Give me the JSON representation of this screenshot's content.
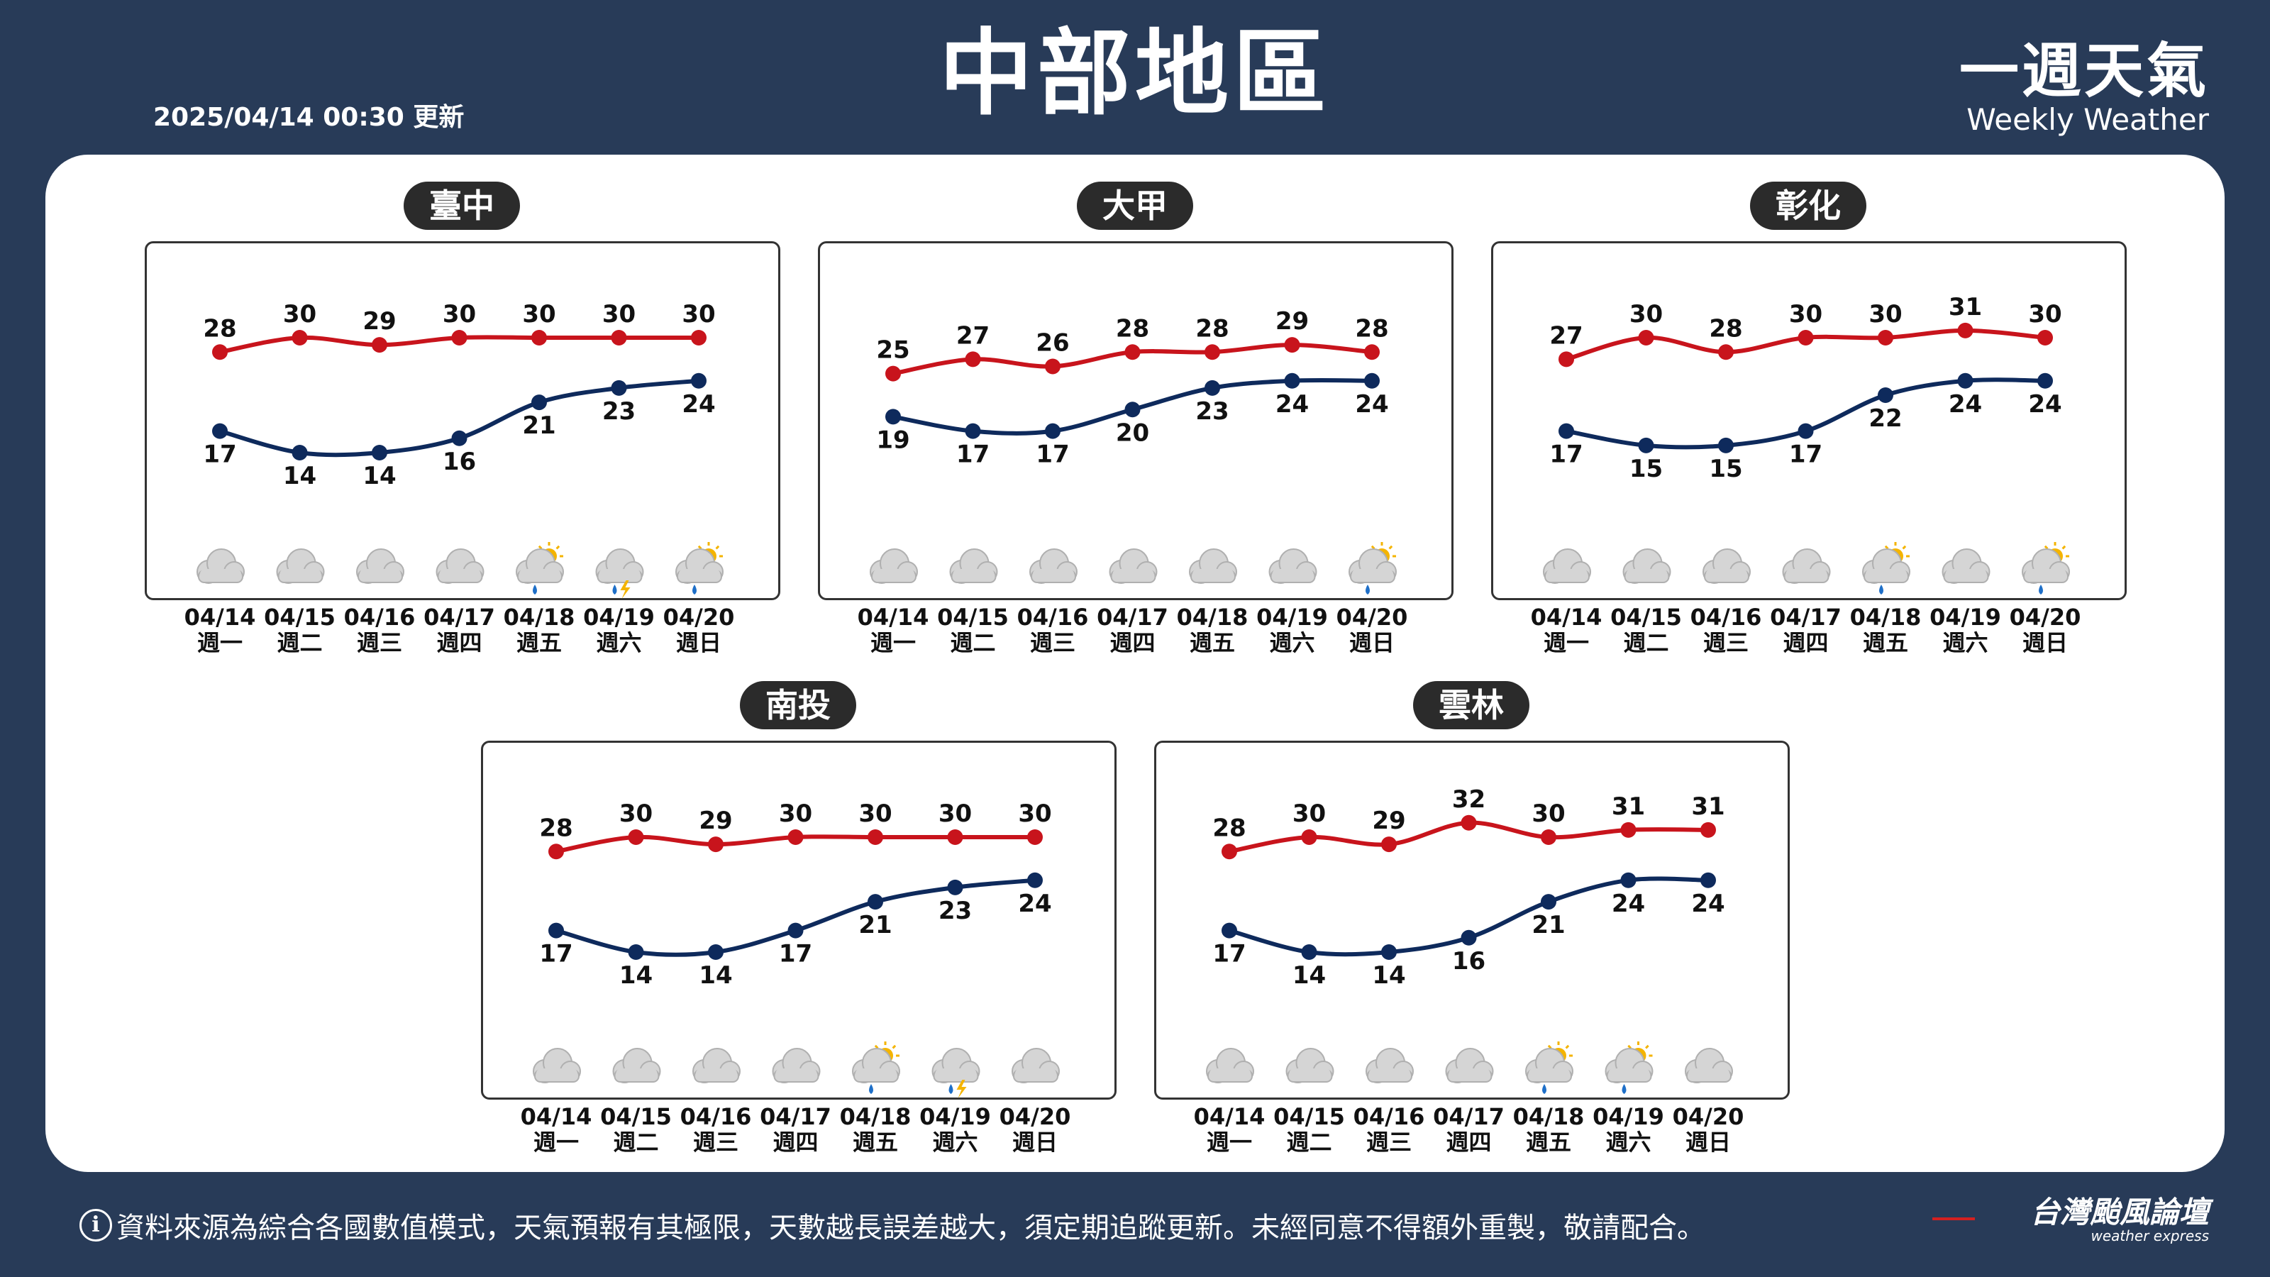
{
  "header": {
    "title": "中部地區",
    "update_time": "2025/04/14 00:30 更新",
    "brand_zh": "一週天氣",
    "brand_en": "Weekly Weather"
  },
  "footer": {
    "disclaimer": "資料來源為綜合各國數值模式，天氣預報有其極限，天數越長誤差越大，須定期追蹤更新。未經同意不得額外重製，敬請配合。",
    "logo_zh": "台灣颱風論壇",
    "logo_en": "weather express"
  },
  "colors": {
    "high": "#c8141c",
    "low": "#0e2a5c",
    "background": "#283b58"
  },
  "chart_data": [
    {
      "type": "line",
      "title": "臺中",
      "dates": [
        "04/14",
        "04/15",
        "04/16",
        "04/17",
        "04/18",
        "04/19",
        "04/20"
      ],
      "weekdays": [
        "週一",
        "週二",
        "週三",
        "週四",
        "週五",
        "週六",
        "週日"
      ],
      "series": [
        {
          "values": [
            28,
            30,
            29,
            30,
            30,
            30,
            30
          ]
        },
        {
          "values": [
            17,
            14,
            14,
            16,
            21,
            23,
            24
          ]
        }
      ],
      "icons": [
        "cloudy",
        "cloudy",
        "cloudy",
        "cloudy",
        "sun-rain",
        "thunder-rain",
        "sun-rain"
      ]
    },
    {
      "type": "line",
      "title": "大甲",
      "dates": [
        "04/14",
        "04/15",
        "04/16",
        "04/17",
        "04/18",
        "04/19",
        "04/20"
      ],
      "weekdays": [
        "週一",
        "週二",
        "週三",
        "週四",
        "週五",
        "週六",
        "週日"
      ],
      "series": [
        {
          "values": [
            25,
            27,
            26,
            28,
            28,
            29,
            28
          ]
        },
        {
          "values": [
            19,
            17,
            17,
            20,
            23,
            24,
            24
          ]
        }
      ],
      "icons": [
        "cloudy",
        "cloudy",
        "cloudy",
        "cloudy",
        "cloudy",
        "cloudy",
        "sun-rain"
      ]
    },
    {
      "type": "line",
      "title": "彰化",
      "dates": [
        "04/14",
        "04/15",
        "04/16",
        "04/17",
        "04/18",
        "04/19",
        "04/20"
      ],
      "weekdays": [
        "週一",
        "週二",
        "週三",
        "週四",
        "週五",
        "週六",
        "週日"
      ],
      "series": [
        {
          "values": [
            27,
            30,
            28,
            30,
            30,
            31,
            30
          ]
        },
        {
          "values": [
            17,
            15,
            15,
            17,
            22,
            24,
            24
          ]
        }
      ],
      "icons": [
        "cloudy",
        "cloudy",
        "cloudy",
        "cloudy",
        "sun-rain",
        "cloudy",
        "sun-rain"
      ]
    },
    {
      "type": "line",
      "title": "南投",
      "dates": [
        "04/14",
        "04/15",
        "04/16",
        "04/17",
        "04/18",
        "04/19",
        "04/20"
      ],
      "weekdays": [
        "週一",
        "週二",
        "週三",
        "週四",
        "週五",
        "週六",
        "週日"
      ],
      "series": [
        {
          "values": [
            28,
            30,
            29,
            30,
            30,
            30,
            30
          ]
        },
        {
          "values": [
            17,
            14,
            14,
            17,
            21,
            23,
            24
          ]
        }
      ],
      "icons": [
        "cloudy",
        "cloudy",
        "cloudy",
        "cloudy",
        "sun-rain",
        "thunder-rain",
        "cloudy"
      ]
    },
    {
      "type": "line",
      "title": "雲林",
      "dates": [
        "04/14",
        "04/15",
        "04/16",
        "04/17",
        "04/18",
        "04/19",
        "04/20"
      ],
      "weekdays": [
        "週一",
        "週二",
        "週三",
        "週四",
        "週五",
        "週六",
        "週日"
      ],
      "series": [
        {
          "values": [
            28,
            30,
            29,
            32,
            30,
            31,
            31
          ]
        },
        {
          "values": [
            17,
            14,
            14,
            16,
            21,
            24,
            24
          ]
        }
      ],
      "icons": [
        "cloudy",
        "cloudy",
        "cloudy",
        "cloudy",
        "sun-rain",
        "sun-rain",
        "cloudy"
      ]
    }
  ]
}
